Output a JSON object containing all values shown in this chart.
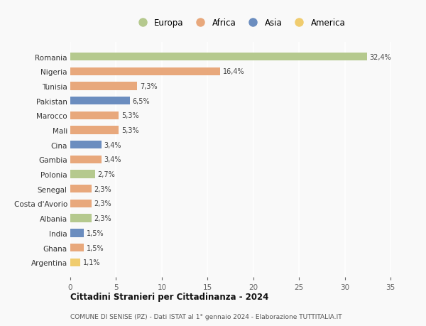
{
  "countries": [
    "Romania",
    "Nigeria",
    "Tunisia",
    "Pakistan",
    "Marocco",
    "Mali",
    "Cina",
    "Gambia",
    "Polonia",
    "Senegal",
    "Costa d'Avorio",
    "Albania",
    "India",
    "Ghana",
    "Argentina"
  ],
  "values": [
    32.4,
    16.4,
    7.3,
    6.5,
    5.3,
    5.3,
    3.4,
    3.4,
    2.7,
    2.3,
    2.3,
    2.3,
    1.5,
    1.5,
    1.1
  ],
  "labels": [
    "32,4%",
    "16,4%",
    "7,3%",
    "6,5%",
    "5,3%",
    "5,3%",
    "3,4%",
    "3,4%",
    "2,7%",
    "2,3%",
    "2,3%",
    "2,3%",
    "1,5%",
    "1,5%",
    "1,1%"
  ],
  "continents": [
    "Europa",
    "Africa",
    "Africa",
    "Asia",
    "Africa",
    "Africa",
    "Asia",
    "Africa",
    "Europa",
    "Africa",
    "Africa",
    "Europa",
    "Asia",
    "Africa",
    "America"
  ],
  "colors": {
    "Europa": "#b5c98e",
    "Africa": "#e8a87c",
    "Asia": "#6b8dbf",
    "America": "#f0cc6e"
  },
  "legend_order": [
    "Europa",
    "Africa",
    "Asia",
    "America"
  ],
  "title1": "Cittadini Stranieri per Cittadinanza - 2024",
  "title2": "COMUNE DI SENISE (PZ) - Dati ISTAT al 1° gennaio 2024 - Elaborazione TUTTITALIA.IT",
  "xlim": [
    0,
    37
  ],
  "xticks": [
    0,
    5,
    10,
    15,
    20,
    25,
    30,
    35
  ],
  "background_color": "#f9f9f9",
  "grid_color": "#ffffff",
  "bar_height": 0.55
}
